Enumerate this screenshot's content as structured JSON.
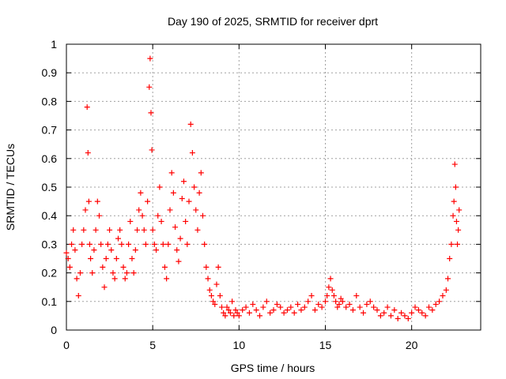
{
  "chart_data": {
    "type": "scatter",
    "title": "Day 190 of 2025, SRMTID for receiver dprt",
    "xlabel": "GPS time / hours",
    "ylabel": "SRMTID / TECUs",
    "xlim": [
      0,
      24
    ],
    "ylim": [
      0,
      1
    ],
    "x_ticks": [
      0,
      5,
      10,
      15,
      20
    ],
    "y_ticks": [
      0,
      0.1,
      0.2,
      0.3,
      0.4,
      0.5,
      0.6,
      0.7,
      0.8,
      0.9,
      1
    ],
    "x_tick_labels": [
      "0",
      "5",
      "10",
      "15",
      "20"
    ],
    "y_tick_labels": [
      "0",
      "0.1",
      "0.2",
      "0.3",
      "0.4",
      "0.5",
      "0.6",
      "0.7",
      "0.8",
      "0.9",
      "1"
    ],
    "grid": true,
    "marker": "+",
    "color": "#ff0000",
    "series": [
      {
        "name": "dprt",
        "x": [
          0.0,
          0.1,
          0.2,
          0.3,
          0.4,
          0.5,
          0.6,
          0.7,
          0.8,
          0.9,
          1.0,
          1.1,
          1.2,
          1.25,
          1.3,
          1.35,
          1.4,
          1.5,
          1.6,
          1.7,
          1.8,
          1.9,
          2.0,
          2.1,
          2.2,
          2.3,
          2.4,
          2.5,
          2.6,
          2.7,
          2.8,
          2.9,
          3.0,
          3.1,
          3.2,
          3.3,
          3.4,
          3.5,
          3.6,
          3.7,
          3.8,
          3.9,
          4.0,
          4.1,
          4.2,
          4.3,
          4.4,
          4.5,
          4.6,
          4.7,
          4.8,
          4.85,
          4.9,
          4.95,
          5.0,
          5.1,
          5.2,
          5.3,
          5.4,
          5.5,
          5.6,
          5.7,
          5.8,
          5.9,
          6.0,
          6.1,
          6.2,
          6.3,
          6.4,
          6.5,
          6.6,
          6.7,
          6.8,
          6.9,
          7.0,
          7.1,
          7.2,
          7.3,
          7.4,
          7.5,
          7.6,
          7.7,
          7.8,
          7.9,
          8.0,
          8.1,
          8.2,
          8.3,
          8.4,
          8.5,
          8.6,
          8.7,
          8.8,
          8.9,
          9.0,
          9.1,
          9.2,
          9.3,
          9.4,
          9.5,
          9.6,
          9.7,
          9.8,
          9.9,
          10.0,
          10.2,
          10.4,
          10.6,
          10.8,
          11.0,
          11.2,
          11.4,
          11.6,
          11.8,
          12.0,
          12.2,
          12.4,
          12.6,
          12.8,
          13.0,
          13.2,
          13.4,
          13.6,
          13.8,
          14.0,
          14.2,
          14.4,
          14.6,
          14.8,
          15.0,
          15.1,
          15.2,
          15.3,
          15.4,
          15.5,
          15.6,
          15.7,
          15.8,
          15.9,
          16.0,
          16.2,
          16.4,
          16.6,
          16.8,
          17.0,
          17.2,
          17.4,
          17.6,
          17.8,
          18.0,
          18.2,
          18.4,
          18.6,
          18.8,
          19.0,
          19.2,
          19.4,
          19.6,
          19.8,
          20.0,
          20.2,
          20.4,
          20.6,
          20.8,
          21.0,
          21.2,
          21.4,
          21.6,
          21.8,
          22.0,
          22.1,
          22.2,
          22.3,
          22.4,
          22.45,
          22.5,
          22.55,
          22.6,
          22.65,
          22.7,
          22.75
        ],
        "y": [
          0.27,
          0.25,
          0.22,
          0.3,
          0.35,
          0.28,
          0.18,
          0.12,
          0.2,
          0.3,
          0.35,
          0.42,
          0.78,
          0.62,
          0.45,
          0.3,
          0.25,
          0.2,
          0.28,
          0.35,
          0.45,
          0.4,
          0.3,
          0.22,
          0.15,
          0.25,
          0.3,
          0.35,
          0.28,
          0.2,
          0.18,
          0.25,
          0.32,
          0.35,
          0.3,
          0.22,
          0.18,
          0.2,
          0.3,
          0.38,
          0.25,
          0.2,
          0.28,
          0.35,
          0.42,
          0.48,
          0.4,
          0.35,
          0.3,
          0.45,
          0.85,
          0.95,
          0.76,
          0.63,
          0.35,
          0.3,
          0.28,
          0.4,
          0.5,
          0.38,
          0.3,
          0.22,
          0.18,
          0.3,
          0.42,
          0.55,
          0.48,
          0.36,
          0.28,
          0.24,
          0.32,
          0.46,
          0.52,
          0.38,
          0.3,
          0.45,
          0.72,
          0.62,
          0.5,
          0.42,
          0.35,
          0.48,
          0.55,
          0.4,
          0.3,
          0.22,
          0.18,
          0.14,
          0.12,
          0.1,
          0.09,
          0.16,
          0.22,
          0.12,
          0.08,
          0.06,
          0.05,
          0.08,
          0.07,
          0.06,
          0.1,
          0.05,
          0.07,
          0.06,
          0.05,
          0.07,
          0.08,
          0.06,
          0.09,
          0.07,
          0.05,
          0.08,
          0.1,
          0.06,
          0.07,
          0.09,
          0.08,
          0.06,
          0.07,
          0.08,
          0.06,
          0.09,
          0.07,
          0.08,
          0.1,
          0.12,
          0.07,
          0.09,
          0.08,
          0.1,
          0.12,
          0.15,
          0.18,
          0.14,
          0.12,
          0.1,
          0.08,
          0.09,
          0.11,
          0.1,
          0.08,
          0.09,
          0.07,
          0.12,
          0.08,
          0.06,
          0.09,
          0.1,
          0.08,
          0.07,
          0.05,
          0.06,
          0.08,
          0.05,
          0.07,
          0.04,
          0.06,
          0.05,
          0.04,
          0.06,
          0.08,
          0.07,
          0.06,
          0.05,
          0.08,
          0.07,
          0.09,
          0.1,
          0.12,
          0.14,
          0.18,
          0.25,
          0.3,
          0.4,
          0.45,
          0.58,
          0.5,
          0.38,
          0.3,
          0.35,
          0.42
        ]
      }
    ]
  }
}
